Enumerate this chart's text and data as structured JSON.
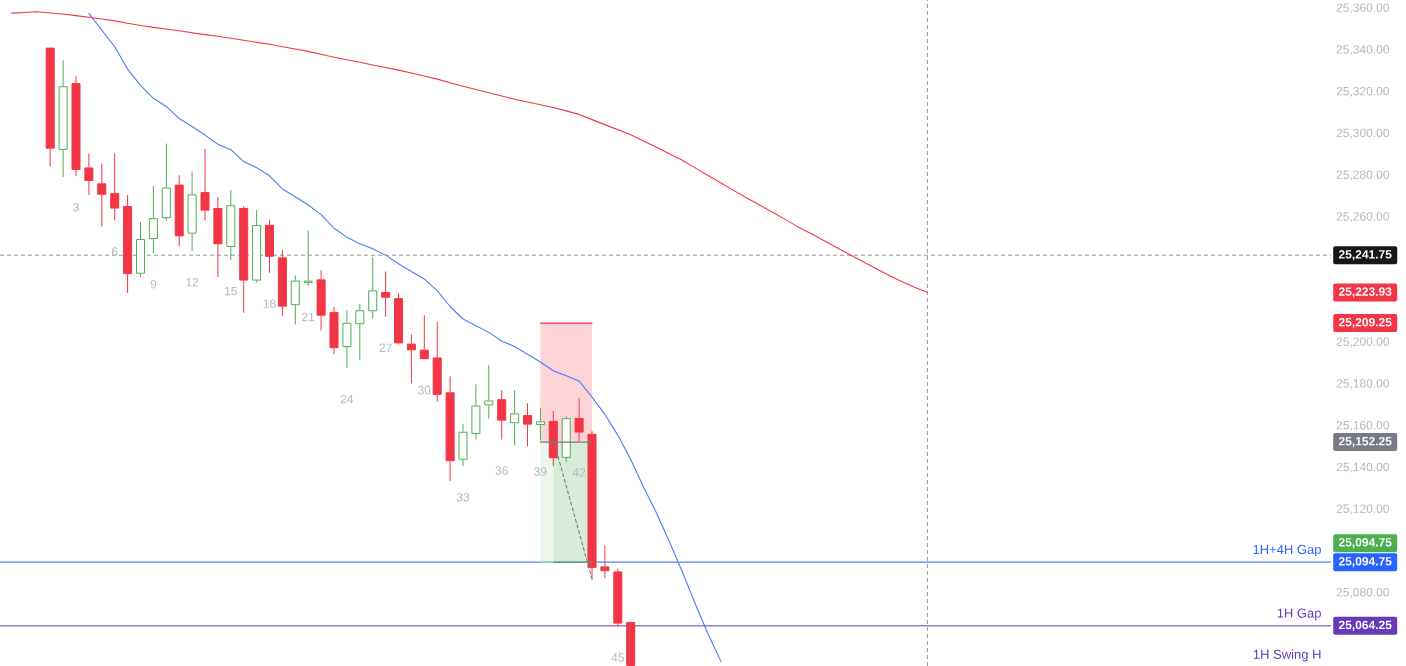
{
  "chart_data": {
    "type": "candlestick",
    "categories": [
      null,
      null,
      null,
      null,
      null,
      null,
      null,
      null,
      null,
      null,
      null,
      null,
      null,
      null,
      null,
      null,
      null,
      null,
      null,
      null,
      null,
      null,
      null,
      null,
      null,
      null,
      null,
      null,
      null,
      null,
      null,
      null,
      null,
      null,
      null,
      null,
      null,
      null,
      null,
      null,
      null,
      null,
      null,
      null,
      null,
      null,
      null,
      null,
      null,
      null,
      null,
      null,
      null,
      null,
      null,
      null,
      null,
      null,
      null,
      null,
      null,
      null,
      null,
      null,
      null,
      null,
      null,
      null,
      null,
      null,
      null,
      null
    ],
    "ohlc": [
      null,
      null,
      null,
      [
        25341.2,
        25341.2,
        25284.3,
        25292.8
      ],
      [
        25292.2,
        25335.1,
        25279.2,
        25322.7
      ],
      [
        25324.2,
        25327.5,
        25279.6,
        25282.6
      ],
      [
        25283.8,
        25290.5,
        25270.6,
        25277.3
      ],
      [
        25276.2,
        25285.7,
        25255.5,
        25270.7
      ],
      [
        25271.5,
        25290.5,
        25258.4,
        25264.1
      ],
      [
        25265.3,
        25270.6,
        25223.7,
        25232.7
      ],
      [
        25232.9,
        25257.7,
        25231.3,
        25249.5
      ],
      [
        25249.5,
        25274.8,
        25242.7,
        25259.5
      ],
      [
        25259.5,
        25295.2,
        25258.4,
        25274.2
      ],
      [
        25275.6,
        25280.0,
        25246.0,
        25250.8
      ],
      [
        25252.1,
        25281.9,
        25243.7,
        25270.9
      ],
      [
        25272.0,
        25292.8,
        25258.4,
        25263.1
      ],
      [
        25264.4,
        25269.6,
        25231.3,
        25247.0
      ],
      [
        25245.7,
        25272.9,
        25239.4,
        25265.7
      ],
      [
        25264.4,
        25265.3,
        25214.2,
        25229.6
      ],
      [
        25229.6,
        25263.4,
        25228.7,
        25256.2
      ],
      [
        25256.3,
        25258.7,
        25233.4,
        25241.0
      ],
      [
        25240.7,
        25244.5,
        25212.8,
        25217.1
      ],
      [
        25217.8,
        25232.1,
        25208.5,
        25229.6
      ],
      [
        25228.5,
        25253.5,
        25227.0,
        25229.6
      ],
      [
        25230.2,
        25234.5,
        25205.7,
        25212.8
      ],
      [
        25214.6,
        25216.9,
        25194.3,
        25197.2
      ],
      [
        25197.8,
        25215.4,
        25187.7,
        25209.4
      ],
      [
        25208.7,
        25218.4,
        25191.5,
        25215.4
      ],
      [
        25214.9,
        25240.8,
        25211.4,
        25224.9
      ],
      [
        25224.1,
        25234.0,
        25212.3,
        25221.4
      ],
      [
        25221.2,
        25223.6,
        25199.0,
        25199.5
      ],
      [
        25199.4,
        25203.7,
        25180.4,
        25196.2
      ],
      [
        25196.5,
        25213.0,
        25192.0,
        25192.0
      ],
      [
        25192.8,
        25209.8,
        25171.5,
        25174.9
      ],
      [
        25176.1,
        25183.7,
        25133.6,
        25143.1
      ],
      [
        25143.8,
        25161.0,
        25140.7,
        25157.2
      ],
      [
        25156.1,
        25179.9,
        25153.5,
        25169.8
      ],
      [
        25169.8,
        25189.0,
        25163.5,
        25172.2
      ],
      [
        25172.8,
        25177.1,
        25153.5,
        25162.5
      ],
      [
        25161.3,
        25177.1,
        25150.7,
        25166.0
      ],
      [
        25165.2,
        25170.9,
        25150.2,
        25160.6
      ],
      [
        25160.4,
        25168.6,
        25153.0,
        25162.2
      ],
      [
        25162.4,
        25167.1,
        25140.7,
        25144.5
      ],
      [
        25144.7,
        25164.6,
        25142.6,
        25163.7
      ],
      [
        25163.8,
        25173.3,
        25152.6,
        25156.8
      ],
      [
        25156.2,
        25157.5,
        25086.6,
        25091.9
      ],
      [
        25092.7,
        25102.6,
        25087.1,
        25090.4
      ],
      [
        25090.3,
        25091.6,
        25063.9,
        25065.3
      ],
      [
        25066.1,
        25066.1,
        25045,
        25045
      ],
      null,
      null,
      null,
      null,
      null,
      null,
      null,
      null,
      null,
      null,
      null,
      null,
      null,
      null,
      null,
      null,
      null,
      null,
      null,
      null,
      null,
      null,
      null
    ],
    "colors": [
      null,
      null,
      null,
      "#f23645",
      "#4caf50",
      "#f23645",
      "#f23645",
      "#f23645",
      "#f23645",
      "#f23645",
      "#4caf50",
      "#4caf50",
      "#4caf50",
      "#f23645",
      "#4caf50",
      "#f23645",
      "#f23645",
      "#4caf50",
      "#f23645",
      "#4caf50",
      "#f23645",
      "#f23645",
      "#4caf50",
      "#4caf50",
      "#f23645",
      "#f23645",
      "#4caf50",
      "#4caf50",
      "#4caf50",
      "#f23645",
      "#f23645",
      "#f23645",
      "#f23645",
      "#f23645",
      "#f23645",
      "#4caf50",
      "#4caf50",
      "#4caf50",
      "#f23645",
      "#4caf50",
      "#f23645",
      "#4caf50",
      "#f23645",
      "#4caf50",
      "#f23645",
      "#f23645",
      "#f23645",
      "#f23645",
      "#f23645",
      null,
      null,
      null,
      null,
      null,
      null,
      null,
      null,
      null,
      null,
      null,
      null,
      null,
      null,
      null,
      null,
      null,
      null,
      null,
      null,
      null,
      null,
      null
    ],
    "value_labels": [
      null,
      null,
      null,
      null,
      null,
      "3",
      null,
      null,
      "6",
      null,
      null,
      "9",
      null,
      null,
      "12",
      null,
      null,
      "15",
      null,
      null,
      "18",
      null,
      null,
      "21",
      null,
      null,
      "24",
      null,
      null,
      "27",
      null,
      null,
      "30",
      null,
      null,
      "33",
      null,
      null,
      "36",
      null,
      null,
      "39",
      null,
      null,
      "42",
      null,
      null,
      "45",
      null,
      null,
      null,
      null,
      null,
      null,
      null,
      null,
      null,
      null,
      null,
      null,
      null,
      null,
      null,
      null,
      null,
      null,
      null,
      null,
      null,
      null,
      null,
      null
    ],
    "series": [
      {
        "type": "line",
        "color": "#4a7df7",
        "values": [
          null,
          null,
          null,
          null,
          null,
          null,
          25357.6,
          25349.6,
          25341.6,
          25330.9,
          25323.1,
          25316.9,
          25313.0,
          25307.2,
          25303.4,
          25299.3,
          25294.9,
          25292.3,
          25286.6,
          25283.7,
          25279.8,
          25273.5,
          25269.8,
          25265.8,
          25261.2,
          25254.7,
          25250.4,
          25247.3,
          25244.8,
          25241.8,
          25237.7,
          25234.0,
          25230.4,
          25224.8,
          25217.2,
          25211.2,
          25208.0,
          25204.8,
          25200.7,
          25198.0,
          25194.3,
          25190.6,
          25186.4,
          25184.0,
          25181.5,
          25173.8,
          25165.5,
          25155.6,
          25143.9,
          25130.6,
          25118.3,
          25104.5,
          25090.1,
          25074.8,
          25060.3,
          25047.1,
          null,
          null,
          null,
          null,
          null,
          null,
          null,
          null,
          null,
          null,
          null,
          null,
          null,
          null,
          null,
          null
        ]
      },
      {
        "type": "line",
        "color": "#f23645",
        "values": [
          25357.7,
          25358.0,
          25358.4,
          25357.8,
          25357.3,
          25356.5,
          25355.7,
          25354.9,
          25354.0,
          25352.9,
          25351.8,
          25350.9,
          25350.1,
          25349.3,
          25348.3,
          25347.4,
          25346.6,
          25345.7,
          25344.7,
          25343.7,
          25342.8,
          25341.6,
          25340.5,
          25339.4,
          25338.0,
          25336.6,
          25335.4,
          25334.2,
          25332.9,
          25331.7,
          25330.4,
          25329.0,
          25327.6,
          25326.1,
          25324.4,
          25322.7,
          25321.1,
          25319.6,
          25318.0,
          25316.5,
          25315.1,
          25313.8,
          25312.5,
          25310.9,
          25309.2,
          25306.7,
          25304.3,
          25301.9,
          25299.5,
          25296.5,
          25293.5,
          25290.3,
          25287.2,
          25283.6,
          25279.9,
          25276.3,
          25272.7,
          25269.2,
          25265.8,
          25262.3,
          25258.8,
          25255.2,
          25252.0,
          25248.7,
          25245.3,
          25242.0,
          25238.7,
          25235.4,
          25232.2,
          25229.2,
          25226.4,
          25223.93
        ]
      },
      {
        "type": "line",
        "color": "#f23645",
        "values": [
          null,
          null,
          null,
          null,
          null,
          null,
          null,
          null,
          null,
          null,
          null,
          null,
          null,
          null,
          null,
          null,
          null,
          null,
          null,
          null,
          null,
          null,
          null,
          null,
          null,
          null,
          null,
          null,
          null,
          null,
          null,
          null,
          null,
          null,
          null,
          null,
          null,
          null,
          null,
          null,
          null,
          25209.25,
          25209.25,
          25209.25,
          25209.25,
          25209.25,
          null,
          null,
          null,
          null,
          null,
          null,
          null,
          null,
          null,
          null,
          null,
          null,
          null,
          null,
          null,
          null,
          null,
          null,
          null,
          null,
          null,
          null,
          null,
          null,
          null,
          null
        ],
        "lower": [
          null,
          null,
          null,
          null,
          null,
          null,
          null,
          null,
          null,
          null,
          null,
          null,
          null,
          null,
          null,
          null,
          null,
          null,
          null,
          null,
          null,
          null,
          null,
          null,
          null,
          null,
          null,
          null,
          null,
          null,
          null,
          null,
          null,
          null,
          null,
          null,
          null,
          null,
          null,
          null,
          null,
          25152.25,
          25152.25,
          25152.25,
          25152.25,
          25152.25,
          null,
          null,
          null,
          null,
          null,
          null,
          null,
          null,
          null,
          null,
          null,
          null,
          null,
          null,
          null,
          null,
          null,
          null,
          null,
          null,
          null,
          null,
          null,
          null,
          null,
          null
        ],
        "upper": [
          null,
          null,
          null,
          null,
          null,
          null,
          null,
          null,
          null,
          null,
          null,
          null,
          null,
          null,
          null,
          null,
          null,
          null,
          null,
          null,
          null,
          null,
          null,
          null,
          null,
          null,
          null,
          null,
          null,
          null,
          null,
          null,
          null,
          null,
          null,
          null,
          null,
          null,
          null,
          null,
          null,
          25209.25,
          25209.25,
          25209.25,
          25209.25,
          25209.25,
          null,
          null,
          null,
          null,
          null,
          null,
          null,
          null,
          null,
          null,
          null,
          null,
          null,
          null,
          null,
          null,
          null,
          null,
          null,
          null,
          null,
          null,
          null,
          null,
          null,
          null
        ]
      },
      {
        "type": "line",
        "name": "25,094.75",
        "color": "#4caf50",
        "values": [
          null,
          null,
          null,
          null,
          null,
          null,
          null,
          null,
          null,
          null,
          null,
          null,
          null,
          null,
          null,
          null,
          null,
          null,
          null,
          null,
          null,
          null,
          null,
          null,
          null,
          null,
          null,
          null,
          null,
          null,
          null,
          null,
          null,
          null,
          null,
          null,
          null,
          null,
          null,
          null,
          null,
          null,
          25094.75,
          25094.75,
          25094.75,
          25094.75,
          null,
          null,
          null,
          null,
          null,
          null,
          null,
          null,
          null,
          null,
          null,
          null,
          null,
          null,
          null,
          null,
          null,
          null,
          null,
          null,
          null,
          null,
          null,
          null,
          null,
          null
        ],
        "lower": [
          null,
          null,
          null,
          null,
          null,
          null,
          null,
          null,
          null,
          null,
          null,
          null,
          null,
          null,
          null,
          null,
          null,
          null,
          null,
          null,
          null,
          null,
          null,
          null,
          null,
          null,
          null,
          null,
          null,
          null,
          null,
          null,
          null,
          null,
          null,
          null,
          null,
          null,
          null,
          null,
          null,
          null,
          25094.75,
          25094.75,
          25094.75,
          25094.75,
          null,
          null,
          null,
          null,
          null,
          null,
          null,
          null,
          null,
          null,
          null,
          null,
          null,
          null,
          null,
          null,
          null,
          null,
          null,
          null,
          null,
          null,
          null,
          null,
          null,
          null
        ],
        "upper": [
          null,
          null,
          null,
          null,
          null,
          null,
          null,
          null,
          null,
          null,
          null,
          null,
          null,
          null,
          null,
          null,
          null,
          null,
          null,
          null,
          null,
          null,
          null,
          null,
          null,
          null,
          null,
          null,
          null,
          null,
          null,
          null,
          null,
          null,
          null,
          null,
          null,
          null,
          null,
          null,
          null,
          null,
          25152.25,
          25152.25,
          25152.25,
          25152.25,
          null,
          null,
          null,
          null,
          null,
          null,
          null,
          null,
          null,
          null,
          null,
          null,
          null,
          null,
          null,
          null,
          null,
          null,
          null,
          null,
          null,
          null,
          null,
          null,
          null,
          null
        ]
      },
      {
        "type": "line",
        "color": "#a5d6a7",
        "values": [
          null,
          null,
          null,
          null,
          null,
          null,
          null,
          null,
          null,
          null,
          null,
          null,
          null,
          null,
          null,
          null,
          null,
          null,
          null,
          null,
          null,
          null,
          null,
          null,
          null,
          null,
          null,
          null,
          null,
          null,
          null,
          null,
          null,
          null,
          null,
          null,
          null,
          null,
          null,
          null,
          null,
          25094.75,
          25094.75,
          null,
          null,
          null,
          null,
          null,
          null,
          null,
          null,
          null,
          null,
          null,
          null,
          null,
          null,
          null,
          null,
          null,
          null,
          null,
          null,
          null,
          null,
          null,
          null,
          null,
          null,
          null,
          null,
          null
        ],
        "lower": [
          null,
          null,
          null,
          null,
          null,
          null,
          null,
          null,
          null,
          null,
          null,
          null,
          null,
          null,
          null,
          null,
          null,
          null,
          null,
          null,
          null,
          null,
          null,
          null,
          null,
          null,
          null,
          null,
          null,
          null,
          null,
          null,
          null,
          null,
          null,
          null,
          null,
          null,
          null,
          null,
          null,
          25094.75,
          25094.75,
          null,
          null,
          null,
          null,
          null,
          null,
          null,
          null,
          null,
          null,
          null,
          null,
          null,
          null,
          null,
          null,
          null,
          null,
          null,
          null,
          null,
          null,
          null,
          null,
          null,
          null,
          null,
          null,
          null
        ],
        "upper": [
          null,
          null,
          null,
          null,
          null,
          null,
          null,
          null,
          null,
          null,
          null,
          null,
          null,
          null,
          null,
          null,
          null,
          null,
          null,
          null,
          null,
          null,
          null,
          null,
          null,
          null,
          null,
          null,
          null,
          null,
          null,
          null,
          null,
          null,
          null,
          null,
          null,
          null,
          null,
          null,
          null,
          25152.25,
          25152.25,
          null,
          null,
          null,
          null,
          null,
          null,
          null,
          null,
          null,
          null,
          null,
          null,
          null,
          null,
          null,
          null,
          null,
          null,
          null,
          null,
          null,
          null,
          null,
          null,
          null,
          null,
          null,
          null,
          null
        ]
      },
      {
        "type": "line",
        "color": "#787b86",
        "values": [
          null,
          null,
          null,
          null,
          null,
          null,
          null,
          null,
          null,
          null,
          null,
          null,
          null,
          null,
          null,
          null,
          null,
          null,
          null,
          null,
          null,
          null,
          null,
          null,
          null,
          null,
          null,
          null,
          null,
          null,
          null,
          null,
          null,
          null,
          null,
          null,
          null,
          null,
          null,
          null,
          null,
          25152.25,
          25152.25,
          25152.25,
          25152.25,
          25152.25,
          null,
          null,
          null,
          null,
          null,
          null,
          null,
          null,
          null,
          null,
          null,
          null,
          null,
          null,
          null,
          null,
          null,
          null,
          null,
          null,
          null,
          null,
          null,
          null,
          null,
          null
        ]
      },
      {
        "type": "line",
        "color": "#787b86",
        "line_style": "dashed",
        "values": [
          null,
          null,
          null,
          null,
          null,
          null,
          null,
          null,
          null,
          null,
          null,
          null,
          null,
          null,
          null,
          null,
          null,
          null,
          null,
          null,
          null,
          null,
          null,
          null,
          null,
          null,
          null,
          null,
          null,
          null,
          null,
          null,
          null,
          null,
          null,
          null,
          null,
          null,
          null,
          null,
          null,
          null,
          25153.5,
          25131.3,
          25109.1,
          25086.6,
          null,
          null,
          null,
          null,
          null,
          null,
          null,
          null,
          null,
          null,
          null,
          null,
          null,
          null,
          null,
          null,
          null,
          null,
          null,
          null,
          null,
          null,
          null,
          null,
          null,
          null
        ]
      }
    ],
    "legend": "right",
    "ylim": [
      25045,
      25364
    ],
    "yticks": [
      {
        "value": 25360,
        "label": "25,360.00"
      },
      {
        "value": 25340,
        "label": "25,340.00"
      },
      {
        "value": 25320,
        "label": "25,320.00"
      },
      {
        "value": 25300,
        "label": "25,300.00"
      },
      {
        "value": 25280,
        "label": "25,280.00"
      },
      {
        "value": 25260,
        "label": "25,260.00"
      },
      {
        "value": 25241.75,
        "label": "25,241.75"
      },
      {
        "value": 25223.93,
        "label": "25,223.93"
      },
      {
        "value": 25209.25,
        "label": "25,209.25"
      },
      {
        "value": 25200,
        "label": "25,200.00"
      },
      {
        "value": 25180,
        "label": "25,180.00"
      },
      {
        "value": 25160,
        "label": "25,160.00"
      },
      {
        "value": 25152.25,
        "label": "25,152.25"
      },
      {
        "value": 25140,
        "label": "25,140.00"
      },
      {
        "value": 25120,
        "label": "25,120.00"
      },
      {
        "value": 25094.75,
        "label": "25,094.75"
      },
      {
        "value": 25080,
        "label": "25,080.00"
      },
      {
        "value": 25064.25,
        "label": "25,064.25"
      }
    ],
    "tick_labels": "y",
    "ref_lines": [
      {
        "axis": "y",
        "value": 25241.75,
        "color": "#9598a1",
        "line_style": "dashed"
      },
      {
        "axis": "y",
        "value": 25094.75,
        "label": "1H+4H Gap",
        "color": "#2962ff"
      },
      {
        "axis": "y",
        "value": 25064.25,
        "label": "1H Gap",
        "color": "#673ab7"
      }
    ],
    "annotations": [
      "1H Swing H"
    ]
  }
}
